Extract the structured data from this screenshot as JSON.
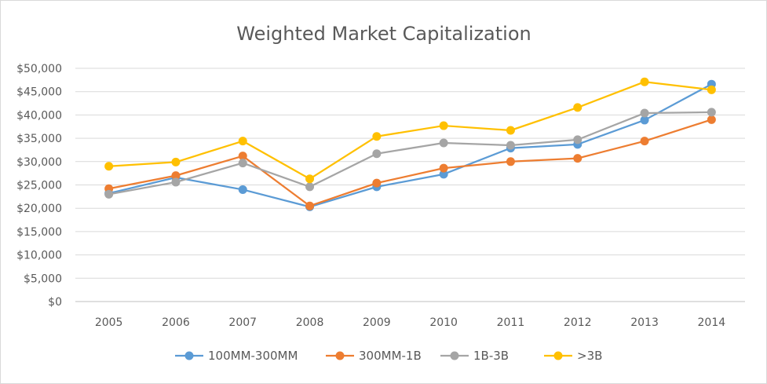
{
  "chart_data": {
    "type": "line",
    "title": "Weighted Market Capitalization",
    "xlabel": "",
    "ylabel": "",
    "categories": [
      "2005",
      "2006",
      "2007",
      "2008",
      "2009",
      "2010",
      "2011",
      "2012",
      "2013",
      "2014"
    ],
    "y_ticks": [
      "$0",
      "$5,000",
      "$10,000",
      "$15,000",
      "$20,000",
      "$25,000",
      "$30,000",
      "$35,000",
      "$40,000",
      "$45,000",
      "$50,000"
    ],
    "ylim": [
      0,
      50000
    ],
    "grid": true,
    "legend_position": "bottom",
    "series": [
      {
        "name": "100MM-300MM",
        "color": "#5b9bd5",
        "values": [
          23200,
          26600,
          24000,
          20300,
          24600,
          27300,
          32900,
          33700,
          38900,
          46600
        ]
      },
      {
        "name": "300MM-1B",
        "color": "#ed7d31",
        "values": [
          24200,
          27000,
          31200,
          20500,
          25400,
          28600,
          30000,
          30700,
          34400,
          39000
        ]
      },
      {
        "name": "1B-3B",
        "color": "#a5a5a5",
        "values": [
          23000,
          25600,
          29700,
          24600,
          31700,
          34000,
          33500,
          34700,
          40400,
          40600
        ]
      },
      {
        "name": ">3B",
        "color": "#ffc000",
        "values": [
          29000,
          29900,
          34400,
          26300,
          35400,
          37700,
          36700,
          41600,
          47100,
          45400
        ]
      }
    ]
  }
}
